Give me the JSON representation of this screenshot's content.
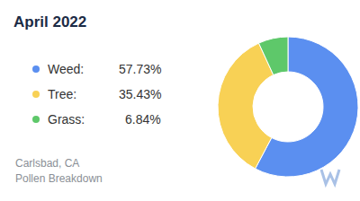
{
  "chart_data": {
    "type": "pie",
    "title": "April 2022",
    "categories": [
      "Weed:",
      "Tree:",
      "Grass:"
    ],
    "values": [
      57.73,
      35.43,
      6.84
    ],
    "value_labels": [
      "57.73%",
      "35.43%",
      "6.84%"
    ],
    "colors": [
      "#5b8ff0",
      "#f8d155",
      "#5ec86a"
    ],
    "legend": "left",
    "data_labels": false,
    "annotations": [
      "Carlsbad, CA",
      "Pollen Breakdown"
    ]
  }
}
